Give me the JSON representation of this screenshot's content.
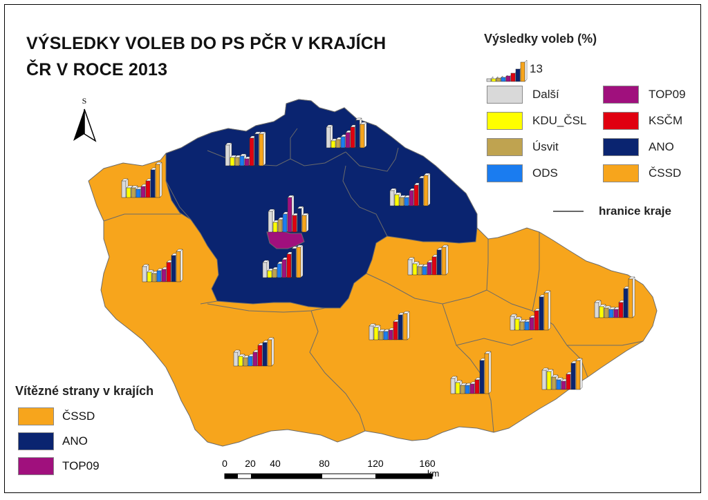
{
  "title": {
    "line1": "VÝSLEDKY VOLEB DO PS PČR V KRAJÍCH",
    "line2": "ČR V ROCE 2013"
  },
  "north_arrow": {
    "letter": "S",
    "icon": "north-arrow-icon"
  },
  "results_legend": {
    "title": "Výsledky voleb (%)",
    "size_value": "13",
    "parties": [
      {
        "label": "Další",
        "color": "#d9d9d9"
      },
      {
        "label": "TOP09",
        "color": "#a0107d"
      },
      {
        "label": "KDU_ČSL",
        "color": "#ffff00"
      },
      {
        "label": "KSČM",
        "color": "#e00010"
      },
      {
        "label": "Úsvit",
        "color": "#bfa350"
      },
      {
        "label": "ANO",
        "color": "#0a2470"
      },
      {
        "label": "ODS",
        "color": "#1a7cf0"
      },
      {
        "label": "ČSSD",
        "color": "#f7a51c"
      }
    ],
    "boundary_label": "hranice kraje"
  },
  "winners_legend": {
    "title": "Vítězné strany v krajích",
    "items": [
      {
        "label": "ČSSD",
        "color": "#f7a51c"
      },
      {
        "label": "ANO",
        "color": "#0a2470"
      },
      {
        "label": "TOP09",
        "color": "#a0107d"
      }
    ]
  },
  "scale_bar": {
    "ticks": [
      "0",
      "20",
      "40",
      "80",
      "120",
      "160"
    ],
    "unit": "km"
  },
  "colors": {
    "cssd_region": "#f7a51c",
    "ano_region": "#0a2470",
    "top09_region": "#a0107d",
    "boundary": "#6a6a6a"
  }
}
